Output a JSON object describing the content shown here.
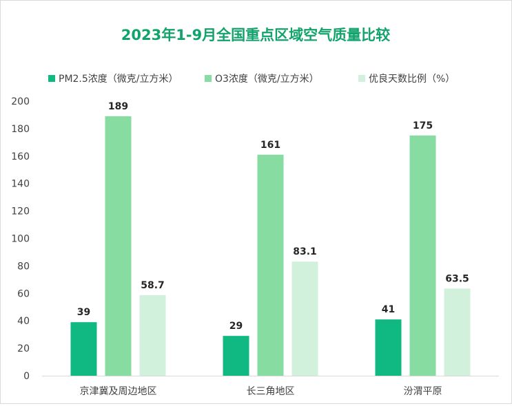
{
  "chart_data": {
    "type": "bar",
    "title": "2023年1-9月全国重点区域空气质量比较",
    "categories": [
      "京津冀及周边地区",
      "长三角地区",
      "汾渭平原"
    ],
    "series": [
      {
        "name": "PM2.5浓度（微克/立方米）",
        "color": "#10b981",
        "values": [
          39,
          29,
          41
        ],
        "labels": [
          "39",
          "29",
          "41"
        ]
      },
      {
        "name": "O3浓度（微克/立方米）",
        "color": "#86dca1",
        "values": [
          189,
          161,
          175
        ],
        "labels": [
          "189",
          "161",
          "175"
        ]
      },
      {
        "name": "优良天数比例（%）",
        "color": "#d2f1dd",
        "values": [
          58.7,
          83.1,
          63.5
        ],
        "labels": [
          "58.7",
          "83.1",
          "63.5"
        ]
      }
    ],
    "ylim": [
      0,
      200
    ],
    "yticks": [
      0,
      20,
      40,
      60,
      80,
      100,
      120,
      140,
      160,
      180,
      200
    ],
    "grid": false,
    "legend_position": "top",
    "title_color": "#12a26c"
  }
}
